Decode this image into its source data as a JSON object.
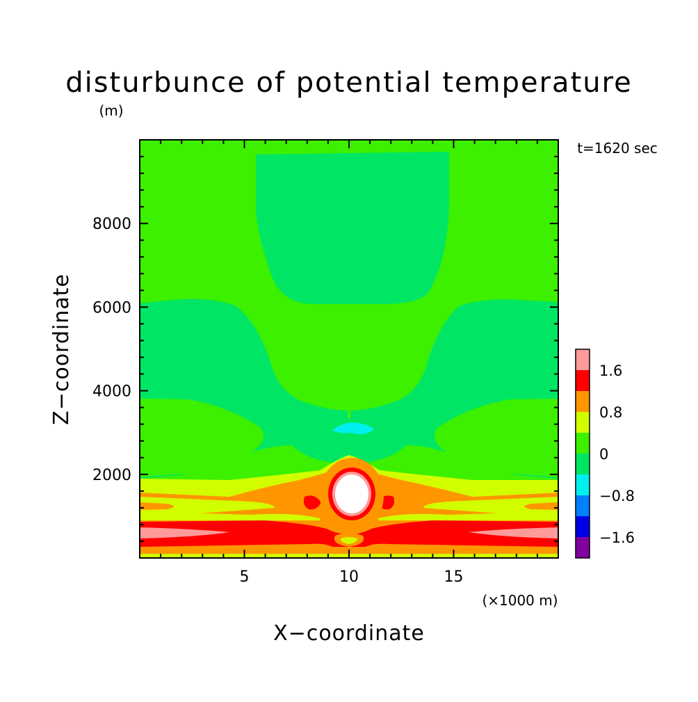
{
  "chart_data": {
    "type": "heatmap",
    "title": "disturbunce of potential temperature",
    "y_unit": "(m)",
    "time_label": "t=1620 sec",
    "xlabel": "X−coordinate",
    "ylabel": "Z−coordinate",
    "x_unit": "(×1000 m)",
    "xlim": [
      0,
      20
    ],
    "ylim": [
      0,
      10000
    ],
    "x_ticks": [
      5,
      10,
      15
    ],
    "y_ticks": [
      2000,
      4000,
      6000,
      8000
    ],
    "colorbar": {
      "levels": [
        {
          "min": -2.0,
          "max": -1.6,
          "color": "#8000a0"
        },
        {
          "min": -1.6,
          "max": -1.2,
          "color": "#0000e6"
        },
        {
          "min": -1.2,
          "max": -0.8,
          "color": "#0080ff"
        },
        {
          "min": -0.8,
          "max": -0.4,
          "color": "#00f0f0"
        },
        {
          "min": -0.4,
          "max": 0.0,
          "color": "#00e664"
        },
        {
          "min": 0.0,
          "max": 0.4,
          "color": "#3cf000"
        },
        {
          "min": 0.4,
          "max": 0.8,
          "color": "#d2ff00"
        },
        {
          "min": 0.8,
          "max": 1.2,
          "color": "#ff9600"
        },
        {
          "min": 1.2,
          "max": 1.6,
          "color": "#ff0000"
        },
        {
          "min": 1.6,
          "max": 2.0,
          "color": "#ff9a9a"
        }
      ],
      "tick_labels": [
        "1.6",
        "0.8",
        "0",
        "−0.8",
        "−1.6"
      ],
      "tick_values": [
        1.6,
        0.8,
        0.0,
        -0.8,
        -1.6
      ]
    }
  }
}
